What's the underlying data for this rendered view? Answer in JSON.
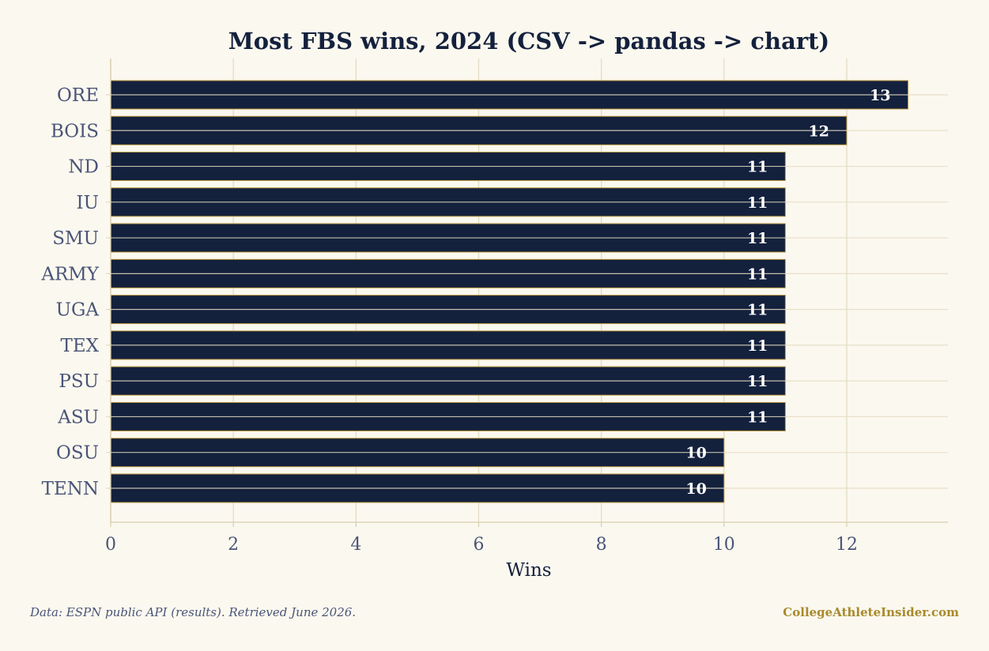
{
  "colors": {
    "background": "#fbf8ef",
    "bar_fill": "#14213d",
    "bar_edge": "#b8963e",
    "grid": "#e4dcc2",
    "text_dark": "#14213d",
    "text_muted": "#4a5578",
    "brand": "#a88a2c"
  },
  "chart_data": {
    "type": "bar",
    "orientation": "horizontal",
    "title": "Most FBS wins, 2024 (CSV -> pandas -> chart)",
    "xlabel": "Wins",
    "ylabel": "",
    "categories": [
      "ORE",
      "BOIS",
      "ND",
      "IU",
      "SMU",
      "ARMY",
      "UGA",
      "TEX",
      "PSU",
      "ASU",
      "OSU",
      "TENN"
    ],
    "values": [
      13,
      12,
      11,
      11,
      11,
      11,
      11,
      11,
      11,
      11,
      10,
      10
    ],
    "xlim": [
      0,
      13.65
    ],
    "xticks": [
      0,
      2,
      4,
      6,
      8,
      10,
      12
    ],
    "grid": true,
    "data_labels": true
  },
  "footer": {
    "source": "Data: ESPN public API (results). Retrieved June 2026.",
    "brand": "CollegeAthleteInsider.com"
  }
}
